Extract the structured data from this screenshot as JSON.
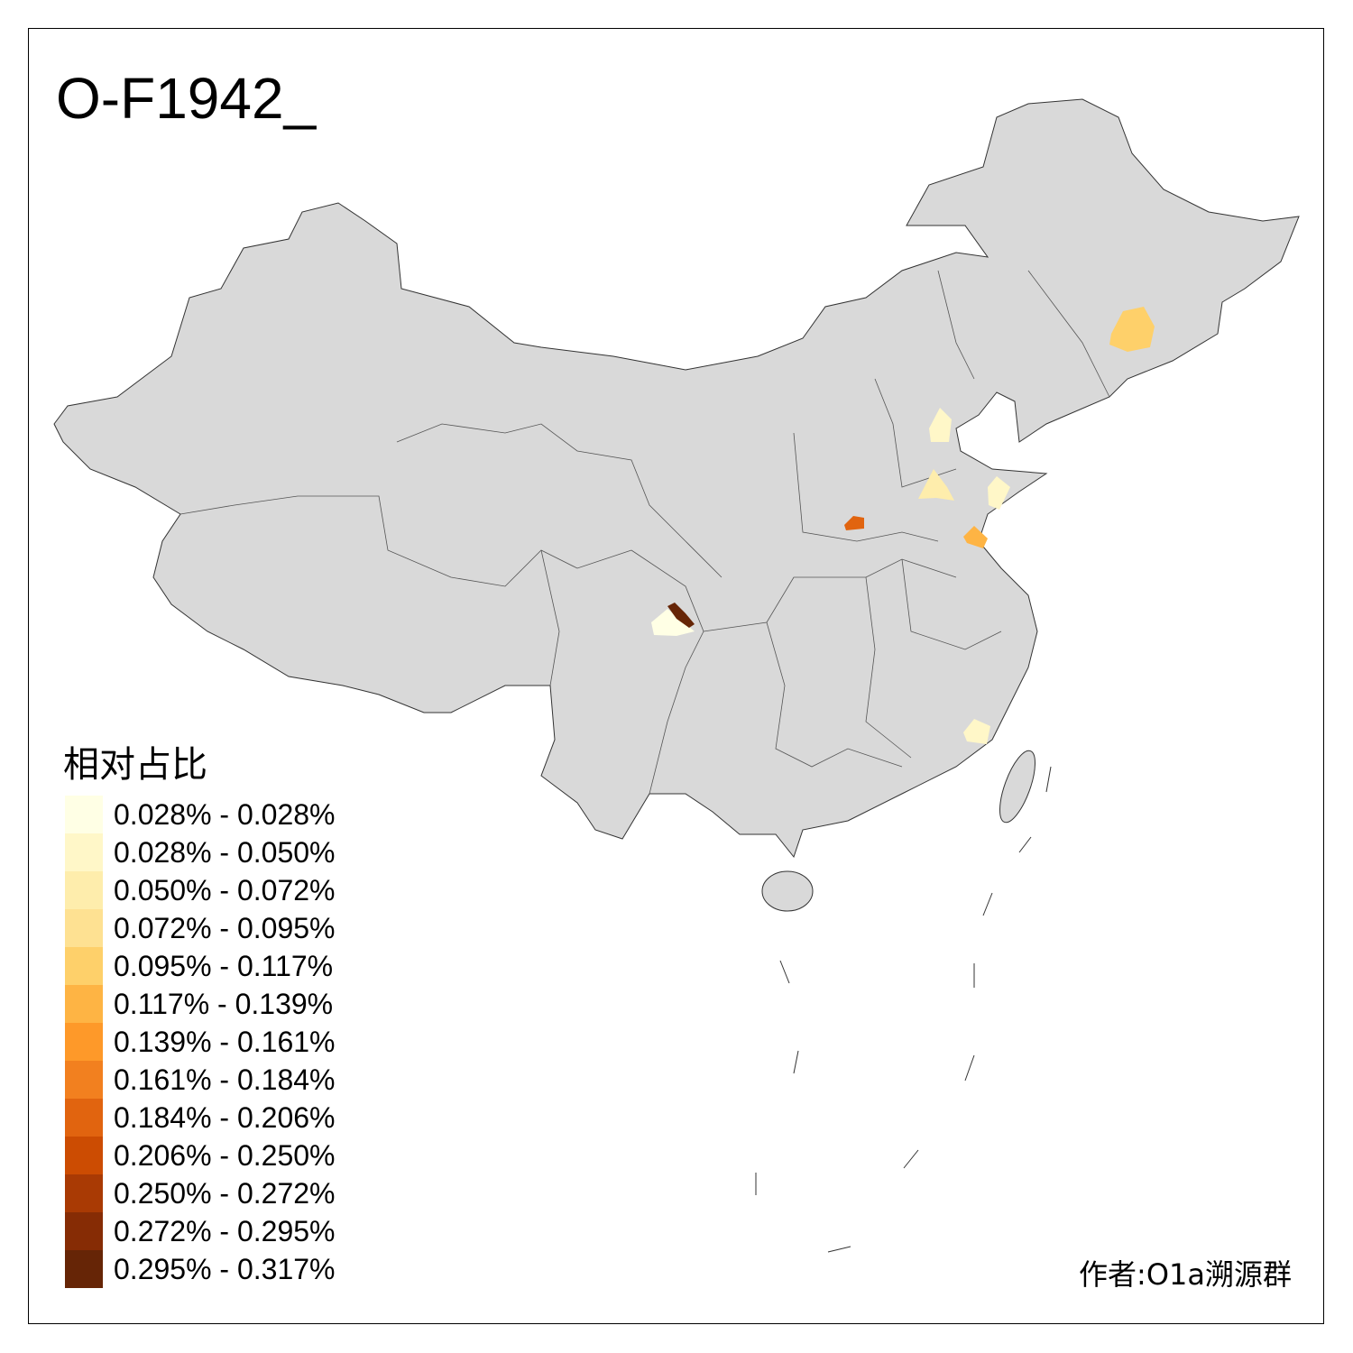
{
  "title": "O-F1942_",
  "legend": {
    "title": "相对占比",
    "items": [
      {
        "label": "0.028% - 0.028%",
        "color": "#FFFFE5"
      },
      {
        "label": "0.028% - 0.050%",
        "color": "#FFF7C8"
      },
      {
        "label": "0.050% - 0.072%",
        "color": "#FEEDAC"
      },
      {
        "label": "0.072% - 0.095%",
        "color": "#FEE192"
      },
      {
        "label": "0.095% - 0.117%",
        "color": "#FED06A"
      },
      {
        "label": "0.117% - 0.139%",
        "color": "#FEB444"
      },
      {
        "label": "0.139% - 0.161%",
        "color": "#FE9929"
      },
      {
        "label": "0.161% - 0.184%",
        "color": "#F2801F"
      },
      {
        "label": "0.184% - 0.206%",
        "color": "#E1640F"
      },
      {
        "label": "0.206% - 0.250%",
        "color": "#CC4C02"
      },
      {
        "label": "0.250% - 0.272%",
        "color": "#A93A04"
      },
      {
        "label": "0.272% - 0.295%",
        "color": "#862C05"
      },
      {
        "label": "0.295% - 0.317%",
        "color": "#662506"
      }
    ]
  },
  "credit": "作者:O1a溯源群",
  "colors": {
    "base_fill": "#D9D9D9",
    "border": "#333333"
  }
}
